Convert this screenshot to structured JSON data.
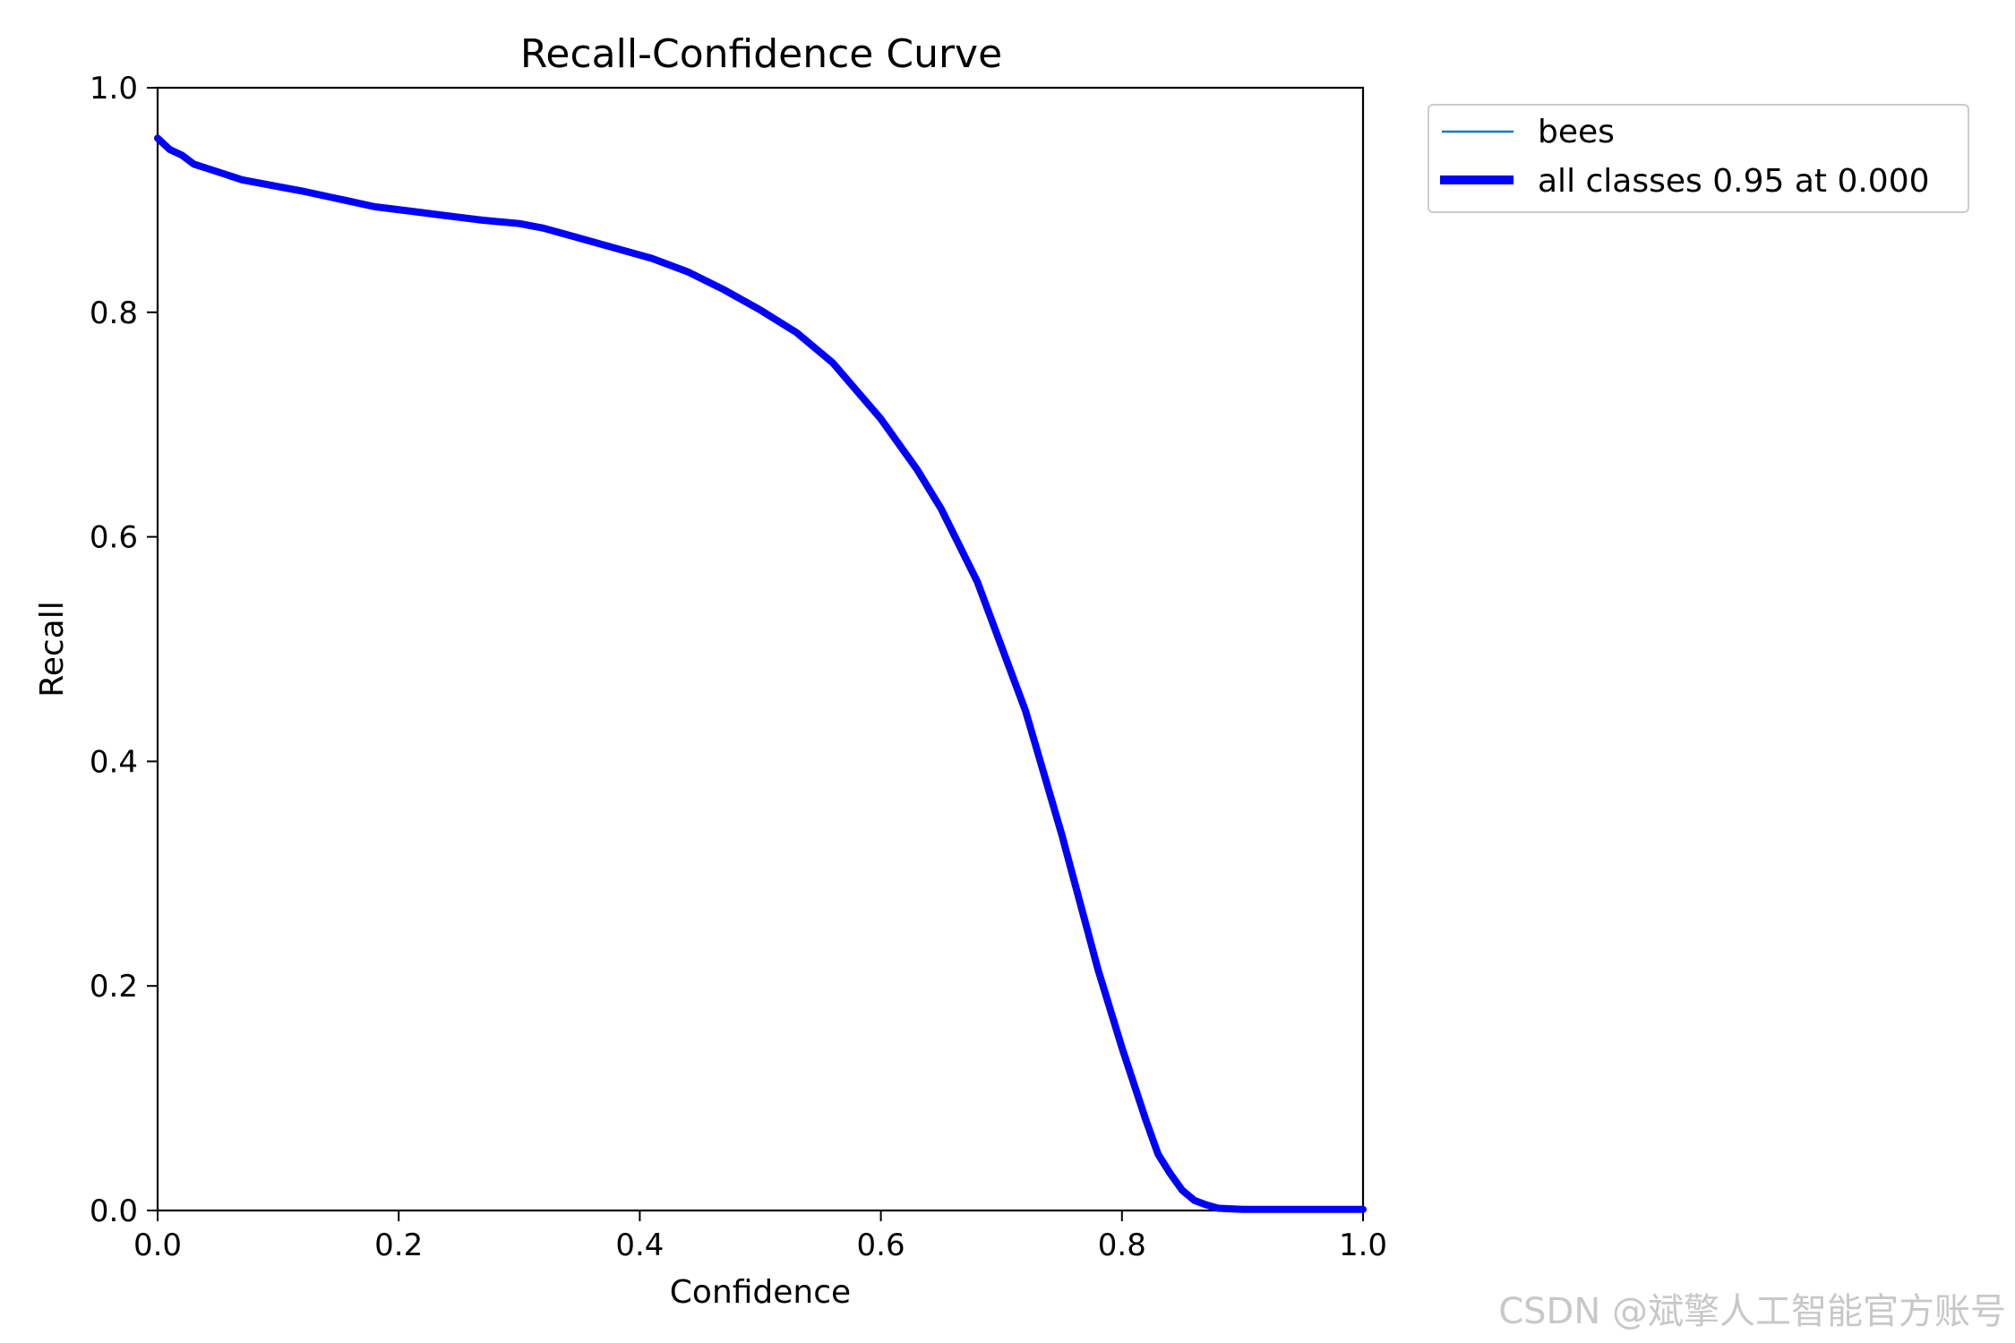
{
  "chart_data": {
    "type": "line",
    "title": "Recall-Confidence Curve",
    "xlabel": "Confidence",
    "ylabel": "Recall",
    "xlim": [
      0.0,
      1.0
    ],
    "ylim": [
      0.0,
      1.0
    ],
    "xticks": [
      "0.0",
      "0.2",
      "0.4",
      "0.6",
      "0.8",
      "1.0"
    ],
    "yticks": [
      "0.0",
      "0.2",
      "0.4",
      "0.6",
      "0.8",
      "1.0"
    ],
    "grid": false,
    "legend_placement": "outside-top-right",
    "series": [
      {
        "name": "bees",
        "color": "#1f77b4",
        "x": [
          0.0,
          0.01,
          0.02,
          0.03,
          0.05,
          0.07,
          0.1,
          0.12,
          0.15,
          0.18,
          0.21,
          0.24,
          0.27,
          0.3,
          0.32,
          0.35,
          0.38,
          0.41,
          0.44,
          0.47,
          0.5,
          0.53,
          0.56,
          0.6,
          0.63,
          0.65,
          0.68,
          0.72,
          0.75,
          0.78,
          0.8,
          0.82,
          0.83,
          0.84,
          0.85,
          0.86,
          0.87,
          0.88,
          0.9,
          0.95,
          1.0
        ],
        "y": [
          0.955,
          0.945,
          0.94,
          0.932,
          0.925,
          0.918,
          0.912,
          0.908,
          0.901,
          0.894,
          0.89,
          0.886,
          0.882,
          0.879,
          0.875,
          0.866,
          0.857,
          0.848,
          0.836,
          0.82,
          0.802,
          0.782,
          0.755,
          0.705,
          0.66,
          0.625,
          0.56,
          0.445,
          0.335,
          0.215,
          0.145,
          0.08,
          0.048,
          0.03,
          0.016,
          0.008,
          0.004,
          0.002,
          0.001,
          0.001,
          0.001
        ]
      },
      {
        "name": "all classes 0.95 at 0.000",
        "color": "#0000ff",
        "x": [
          0.0,
          0.01,
          0.02,
          0.03,
          0.05,
          0.07,
          0.1,
          0.12,
          0.15,
          0.18,
          0.21,
          0.24,
          0.27,
          0.3,
          0.32,
          0.35,
          0.38,
          0.41,
          0.44,
          0.47,
          0.5,
          0.53,
          0.56,
          0.6,
          0.63,
          0.65,
          0.68,
          0.72,
          0.75,
          0.78,
          0.8,
          0.82,
          0.83,
          0.84,
          0.85,
          0.86,
          0.87,
          0.88,
          0.9,
          0.95,
          1.0
        ],
        "y": [
          0.955,
          0.945,
          0.94,
          0.932,
          0.925,
          0.918,
          0.912,
          0.908,
          0.901,
          0.894,
          0.89,
          0.886,
          0.882,
          0.879,
          0.875,
          0.866,
          0.857,
          0.848,
          0.836,
          0.82,
          0.802,
          0.782,
          0.755,
          0.705,
          0.66,
          0.625,
          0.56,
          0.445,
          0.335,
          0.215,
          0.145,
          0.08,
          0.05,
          0.033,
          0.018,
          0.009,
          0.005,
          0.002,
          0.001,
          0.001,
          0.001
        ]
      }
    ]
  },
  "watermark": "CSDN @斌擎人工智能官方账号"
}
